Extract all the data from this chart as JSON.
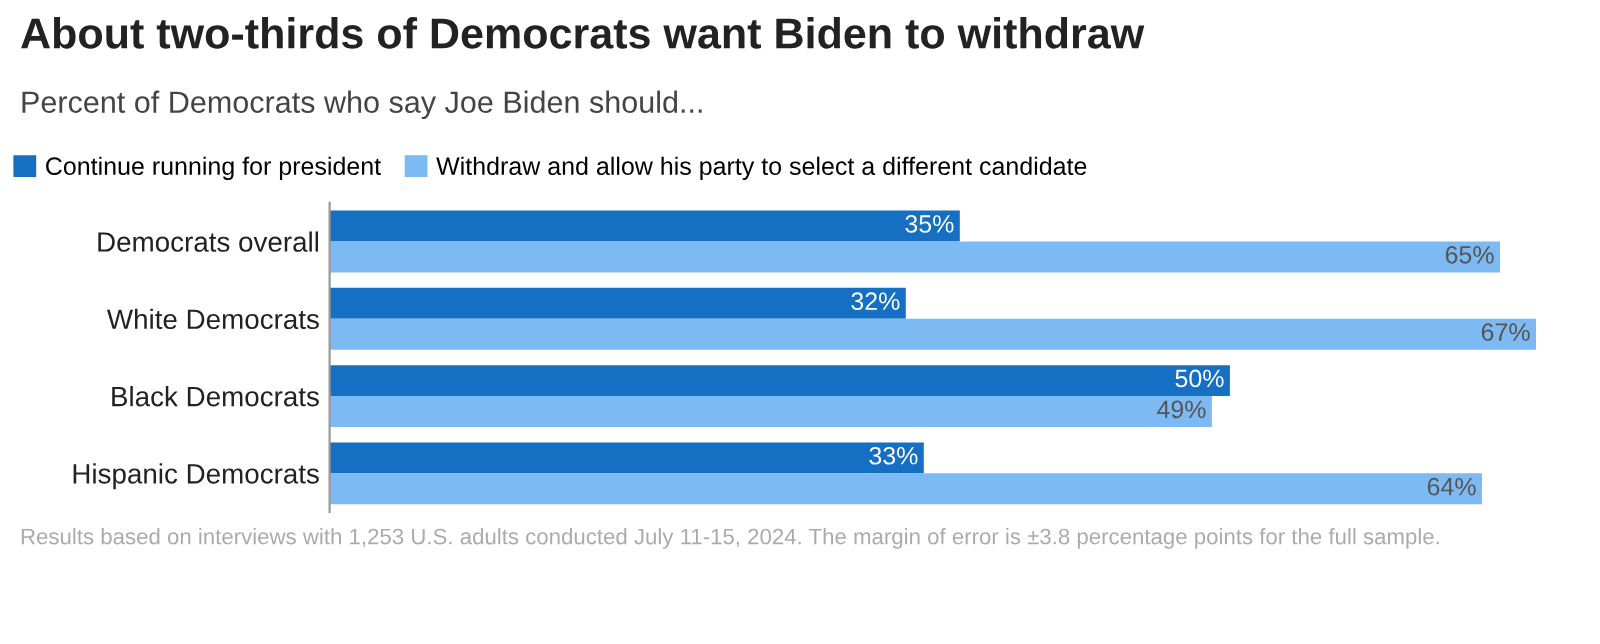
{
  "chart_data": {
    "type": "bar",
    "orientation": "horizontal",
    "title": "About two-thirds of Democrats want Biden to withdraw",
    "subtitle": "Percent of Democrats who say Joe Biden should...",
    "categories": [
      "Democrats overall",
      "White Democrats",
      "Black Democrats",
      "Hispanic Democrats"
    ],
    "series": [
      {
        "name": "Continue running for president",
        "color": "#1570c4",
        "values": [
          35,
          32,
          50,
          33
        ],
        "value_labels": [
          "35%",
          "32%",
          "50%",
          "33%"
        ]
      },
      {
        "name": "Withdraw and allow his party to select a different candidate",
        "color": "#7db9f2",
        "values": [
          65,
          67,
          49,
          64
        ],
        "value_labels": [
          "65%",
          "67%",
          "49%",
          "64%"
        ]
      }
    ],
    "xlim": [
      0,
      67
    ],
    "tick_labels": "y",
    "grid": false,
    "legend": "top left",
    "annotations": [
      "Results based on interviews with 1,253 U.S. adults conducted July 11-15, 2024. The margin of error is ±3.8 percentage points for the full sample."
    ]
  }
}
